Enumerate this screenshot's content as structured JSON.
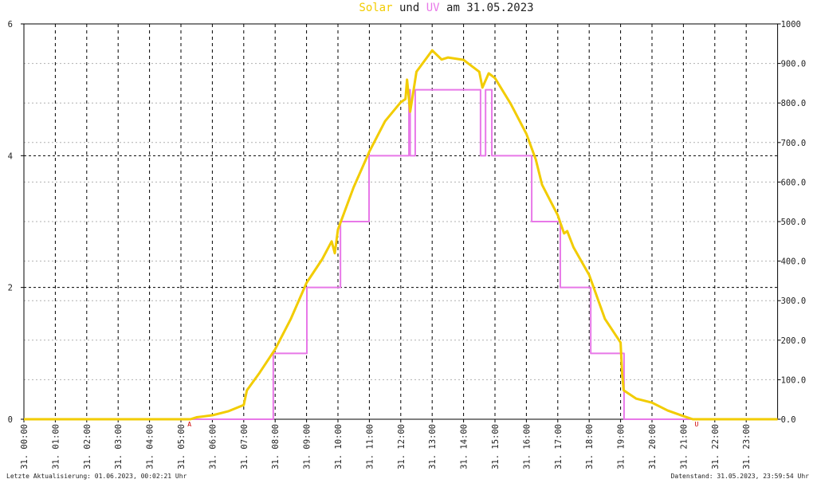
{
  "chart_data": {
    "type": "line",
    "title_connector": "und",
    "title_date": "am 31.05.2023",
    "xlim": [
      0,
      24
    ],
    "ylim": [
      0,
      6
    ],
    "yticks": [
      0,
      2,
      4,
      6
    ],
    "y2lim": [
      0,
      1000
    ],
    "y2ticks": [
      {
        "value": 0,
        "label": "0.0"
      },
      {
        "value": 100,
        "label": "100.0"
      },
      {
        "value": 200,
        "label": "200.0"
      },
      {
        "value": 300,
        "label": "300.0"
      },
      {
        "value": 400,
        "label": "400.0"
      },
      {
        "value": 500,
        "label": "500.0"
      },
      {
        "value": 600,
        "label": "600.0"
      },
      {
        "value": 700,
        "label": "700.0"
      },
      {
        "value": 800,
        "label": "800.0"
      },
      {
        "value": 900,
        "label": "900.0"
      },
      1000
    ],
    "xticks": [
      {
        "value": 0,
        "label": "31. 00:00"
      },
      {
        "value": 1,
        "label": "31. 01:00"
      },
      {
        "value": 2,
        "label": "31. 02:00"
      },
      {
        "value": 3,
        "label": "31. 03:00"
      },
      {
        "value": 4,
        "label": "31. 04:00"
      },
      {
        "value": 5,
        "label": "31. 05:00"
      },
      {
        "value": 6,
        "label": "31. 06:00"
      },
      {
        "value": 7,
        "label": "31. 07:00"
      },
      {
        "value": 8,
        "label": "31. 08:00"
      },
      {
        "value": 9,
        "label": "31. 09:00"
      },
      {
        "value": 10,
        "label": "31. 10:00"
      },
      {
        "value": 11,
        "label": "31. 11:00"
      },
      {
        "value": 12,
        "label": "31. 12:00"
      },
      {
        "value": 13,
        "label": "31. 13:00"
      },
      {
        "value": 14,
        "label": "31. 14:00"
      },
      {
        "value": 15,
        "label": "31. 15:00"
      },
      {
        "value": 16,
        "label": "31. 16:00"
      },
      {
        "value": 17,
        "label": "31. 17:00"
      },
      {
        "value": 18,
        "label": "31. 18:00"
      },
      {
        "value": 19,
        "label": "31. 19:00"
      },
      {
        "value": 20,
        "label": "31. 20:00"
      },
      {
        "value": 21,
        "label": "31. 21:00"
      },
      {
        "value": 22,
        "label": "31. 22:00"
      },
      {
        "value": 23,
        "label": "31. 23:00"
      }
    ],
    "grid": true,
    "series": [
      {
        "name": "Solar",
        "color": "#f2cc00",
        "axis": "y2",
        "x": [
          0,
          5.3,
          5.5,
          6.0,
          6.5,
          7.0,
          7.1,
          7.5,
          8.0,
          8.5,
          9.0,
          9.5,
          9.8,
          9.9,
          10.0,
          10.5,
          11.0,
          11.5,
          12.0,
          12.15,
          12.2,
          12.3,
          12.5,
          13.0,
          13.3,
          13.5,
          14.0,
          14.5,
          14.6,
          14.8,
          15.0,
          15.5,
          16.0,
          16.3,
          16.5,
          17.0,
          17.2,
          17.3,
          17.5,
          18.0,
          18.5,
          19.0,
          19.05,
          19.1,
          19.5,
          20.0,
          20.5,
          21.0,
          21.3,
          24
        ],
        "values": [
          0,
          0,
          5,
          10,
          20,
          36,
          73,
          117,
          177,
          254,
          345,
          405,
          450,
          420,
          480,
          587,
          677,
          754,
          802,
          810,
          859,
          778,
          879,
          933,
          910,
          915,
          909,
          879,
          839,
          875,
          863,
          798,
          722,
          657,
          593,
          516,
          470,
          476,
          435,
          365,
          254,
          194,
          113,
          73,
          52,
          42,
          22,
          8,
          0,
          0
        ]
      },
      {
        "name": "UV",
        "color": "#e878e8",
        "axis": "y",
        "x": [
          0,
          7.94,
          7.94,
          9.01,
          9.01,
          10.08,
          10.08,
          10.99,
          10.99,
          12.26,
          12.26,
          12.3,
          12.3,
          12.46,
          12.46,
          14.54,
          14.54,
          14.7,
          14.7,
          14.9,
          14.9,
          16.17,
          16.17,
          17.08,
          17.08,
          18.05,
          18.05,
          19.11,
          19.11,
          24
        ],
        "values": [
          0,
          0,
          1,
          1,
          2,
          2,
          3,
          3,
          4,
          4,
          5,
          5,
          4,
          4,
          5,
          5,
          4,
          4,
          5,
          5,
          4,
          4,
          3,
          3,
          2,
          2,
          1,
          1,
          0,
          0
        ]
      }
    ],
    "annotations": [
      {
        "text": "A",
        "x": 5.27,
        "color": "#cc0000"
      },
      {
        "text": "U",
        "x": 21.42,
        "color": "#cc0000"
      }
    ],
    "footer_left": "Letzte Aktualisierung: 01.06.2023, 00:02:21 Uhr",
    "footer_right": "Datenstand: 31.05.2023, 23:59:54 Uhr"
  }
}
